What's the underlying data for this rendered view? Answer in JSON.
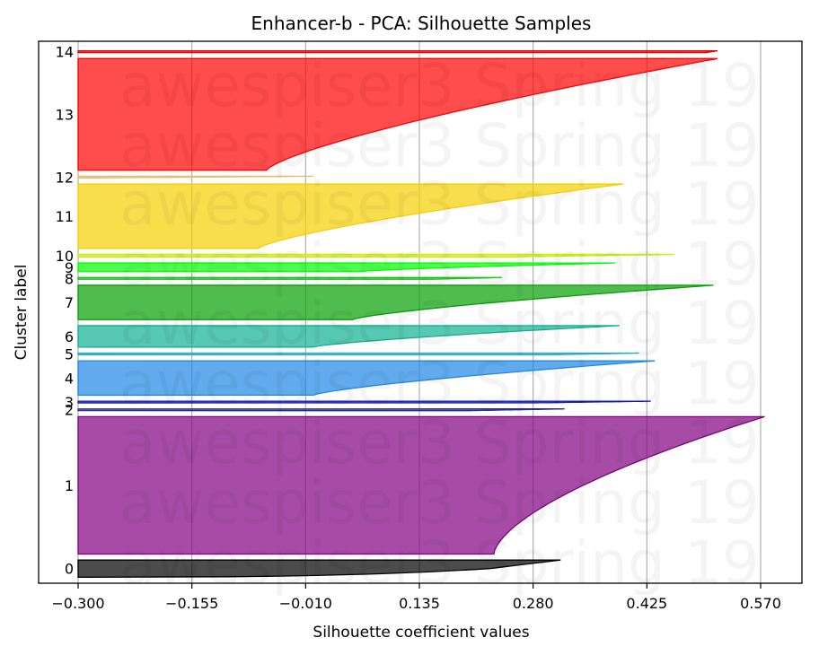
{
  "chart_data": {
    "type": "area",
    "title": "Enhancer-b - PCA: Silhouette Samples",
    "xlabel": "Silhouette coefficient values",
    "ylabel": "Cluster label",
    "xlim": [
      -0.3,
      0.65
    ],
    "x_ticks": [
      -0.3,
      -0.155,
      -0.01,
      0.135,
      0.28,
      0.425,
      0.57
    ],
    "x_tick_labels": [
      "−0.300",
      "−0.155",
      "−0.010",
      "0.135",
      "0.280",
      "0.425",
      "0.570"
    ],
    "grid": "vertical",
    "watermark": "awespiser3 Spring 19",
    "clusters": [
      {
        "label": "0",
        "color": "#000000",
        "size": 20,
        "max": 0.315,
        "min": -0.29,
        "shape": "sharp"
      },
      {
        "label": "1",
        "color": "#800080",
        "size": 160,
        "max": 0.575,
        "min": 0.23,
        "shape": "convex"
      },
      {
        "label": "2",
        "color": "#2a2a9a",
        "size": 2,
        "max": 0.32,
        "min": 0.2,
        "shape": "linear"
      },
      {
        "label": "3",
        "color": "#1a1ab8",
        "size": 2,
        "max": 0.43,
        "min": 0.28,
        "shape": "linear"
      },
      {
        "label": "4",
        "color": "#1e88e5",
        "size": 40,
        "max": 0.435,
        "min": 0.0,
        "shape": "steady"
      },
      {
        "label": "5",
        "color": "#29a8c8",
        "size": 2,
        "max": 0.415,
        "min": 0.3,
        "shape": "linear"
      },
      {
        "label": "6",
        "color": "#10b090",
        "size": 25,
        "max": 0.39,
        "min": 0.0,
        "shape": "steady"
      },
      {
        "label": "7",
        "color": "#05a005",
        "size": 40,
        "max": 0.51,
        "min": 0.05,
        "shape": "steady"
      },
      {
        "label": "8",
        "color": "#20c020",
        "size": 2,
        "max": 0.24,
        "min": 0.15,
        "shape": "linear"
      },
      {
        "label": "9",
        "color": "#00ff00",
        "size": 10,
        "max": 0.385,
        "min": 0.06,
        "shape": "steady"
      },
      {
        "label": "10",
        "color": "#ccee00",
        "size": 3,
        "max": 0.46,
        "min": 0.25,
        "shape": "linear"
      },
      {
        "label": "11",
        "color": "#f5d000",
        "size": 75,
        "max": 0.395,
        "min": -0.07,
        "shape": "steady"
      },
      {
        "label": "12",
        "color": "#e0c070",
        "size": 2,
        "max": 0.0,
        "min": -0.28,
        "shape": "linear"
      },
      {
        "label": "13",
        "color": "#ff0000",
        "size": 130,
        "max": 0.515,
        "min": -0.06,
        "shape": "steady"
      },
      {
        "label": "14",
        "color": "#ee0000",
        "size": 2,
        "max": 0.515,
        "min": 0.5,
        "shape": "linear"
      }
    ]
  }
}
